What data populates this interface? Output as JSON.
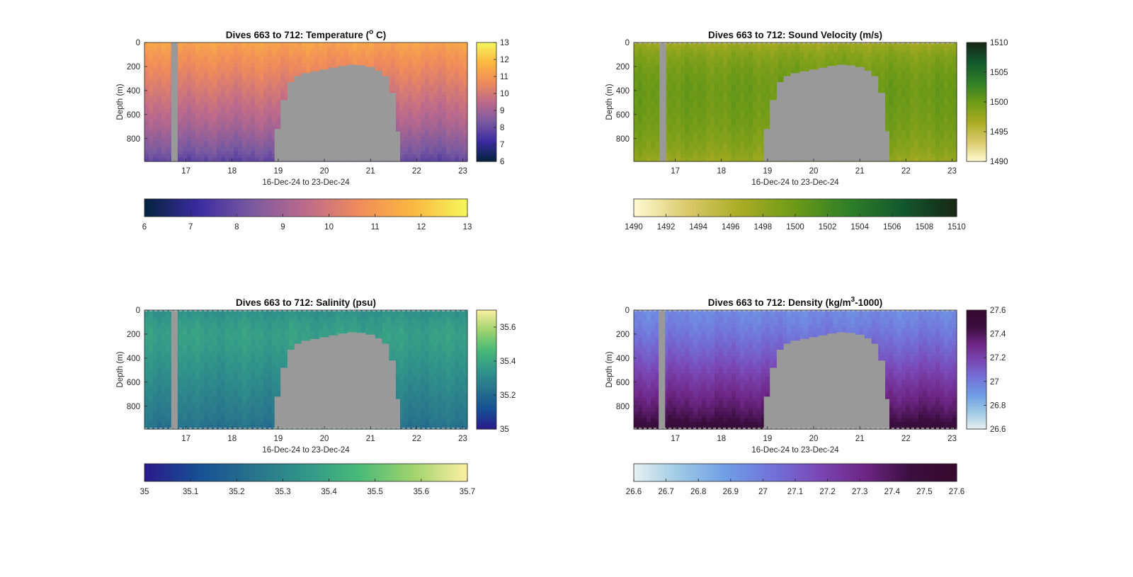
{
  "figure": {
    "background": "#ffffff",
    "hidden_color": "#999999"
  },
  "chart_data": [
    {
      "type": "heatmap",
      "title": "Dives 663 to 712: Temperature (° C)",
      "title_parts": [
        "Dives 663 to 712: Temperature (",
        "o",
        " C)"
      ],
      "xlabel": "16-Dec-24 to 23-Dec-24",
      "ylabel": "Depth (m)",
      "xlim": [
        16.1,
        23.1
      ],
      "ylim": [
        0,
        990
      ],
      "y_reversed": true,
      "x_ticks": [
        17,
        18,
        19,
        20,
        21,
        22,
        23
      ],
      "y_ticks": [
        0,
        200,
        400,
        600,
        800
      ],
      "colormap": "thermal",
      "colormap_stops": [
        "#04233d",
        "#3a2ba0",
        "#7a5aa0",
        "#bd6a8b",
        "#f08c5a",
        "#fbb840",
        "#f5f75c"
      ],
      "clim": [
        6,
        13
      ],
      "side_colorbar_ticks": [
        6,
        7,
        8,
        9,
        10,
        11,
        12,
        13
      ],
      "bottom_colorbar_ticks": [
        6,
        7,
        8,
        9,
        10,
        11,
        12,
        13
      ],
      "profile": {
        "depth": [
          0,
          100,
          200,
          300,
          400,
          500,
          600,
          700,
          800,
          900,
          990
        ],
        "values": [
          11.3,
          10.9,
          10.6,
          10.3,
          10.0,
          9.7,
          9.4,
          9.1,
          8.7,
          8.3,
          7.8
        ]
      },
      "gaps": [
        {
          "x": [
            16.68,
            16.82
          ],
          "depth": [
            0,
            990
          ]
        }
      ],
      "seafloor": {
        "x": [
          18.92,
          19.05,
          19.2,
          19.35,
          19.5,
          19.7,
          19.9,
          20.1,
          20.3,
          20.5,
          20.7,
          20.9,
          21.1,
          21.25,
          21.4,
          21.55
        ],
        "depth": [
          720,
          480,
          330,
          280,
          255,
          240,
          225,
          210,
          195,
          185,
          190,
          205,
          235,
          280,
          420,
          740
        ]
      },
      "surface_dash": false,
      "bottom_dash": false
    },
    {
      "type": "heatmap",
      "title": "Dives 663 to 712: Sound Velocity (m/s)",
      "title_parts": [
        "Dives 663 to 712: Sound Velocity (m/s)",
        "",
        ""
      ],
      "xlabel": "16-Dec-24 to 23-Dec-24",
      "ylabel": "Depth (m)",
      "xlim": [
        16.1,
        23.1
      ],
      "ylim": [
        0,
        990
      ],
      "y_reversed": true,
      "x_ticks": [
        17,
        18,
        19,
        20,
        21,
        22,
        23
      ],
      "y_ticks": [
        0,
        200,
        400,
        600,
        800
      ],
      "colormap": "speed",
      "colormap_stops": [
        "#fffad2",
        "#dac96a",
        "#a8ab23",
        "#6c9a17",
        "#2e7f28",
        "#13582e",
        "#172714"
      ],
      "clim": [
        1490,
        1510
      ],
      "side_colorbar_ticks": [
        1490,
        1495,
        1500,
        1505,
        1510
      ],
      "bottom_colorbar_ticks": [
        1490,
        1492,
        1494,
        1496,
        1498,
        1500,
        1502,
        1504,
        1506,
        1508,
        1510
      ],
      "profile": {
        "depth": [
          0,
          100,
          200,
          300,
          400,
          500,
          600,
          700,
          800,
          900,
          990
        ],
        "values": [
          1497.0,
          1498.5,
          1499.3,
          1499.8,
          1500.0,
          1499.9,
          1499.7,
          1499.4,
          1498.9,
          1498.3,
          1497.4
        ]
      },
      "gaps": [
        {
          "x": [
            16.66,
            16.8
          ],
          "depth": [
            0,
            990
          ]
        }
      ],
      "seafloor": {
        "x": [
          18.92,
          19.05,
          19.2,
          19.35,
          19.5,
          19.7,
          19.9,
          20.1,
          20.3,
          20.5,
          20.7,
          20.9,
          21.1,
          21.25,
          21.4,
          21.55
        ],
        "depth": [
          720,
          480,
          330,
          280,
          255,
          240,
          225,
          210,
          195,
          185,
          190,
          205,
          235,
          280,
          420,
          740
        ]
      },
      "surface_dash": true,
      "bottom_dash": false
    },
    {
      "type": "heatmap",
      "title": "Dives 663 to 712: Salinity (psu)",
      "title_parts": [
        "Dives 663 to 712: Salinity (psu)",
        "",
        ""
      ],
      "xlabel": "16-Dec-24 to 23-Dec-24",
      "ylabel": "Depth (m)",
      "xlim": [
        16.1,
        23.1
      ],
      "ylim": [
        0,
        990
      ],
      "y_reversed": true,
      "x_ticks": [
        17,
        18,
        19,
        20,
        21,
        22,
        23
      ],
      "y_ticks": [
        0,
        200,
        400,
        600,
        800
      ],
      "colormap": "haline",
      "colormap_stops": [
        "#2a1a8a",
        "#174f94",
        "#27738c",
        "#32968a",
        "#4aba78",
        "#a0d36d",
        "#fdf0a0"
      ],
      "clim": [
        35,
        35.7
      ],
      "side_colorbar_ticks": [
        35,
        35.2,
        35.4,
        35.6
      ],
      "bottom_colorbar_ticks": [
        35,
        35.1,
        35.2,
        35.3,
        35.4,
        35.5,
        35.6,
        35.7
      ],
      "profile": {
        "depth": [
          0,
          100,
          200,
          300,
          400,
          500,
          600,
          700,
          800,
          900,
          990
        ],
        "values": [
          35.33,
          35.36,
          35.38,
          35.37,
          35.35,
          35.33,
          35.31,
          35.29,
          35.27,
          35.25,
          35.22
        ]
      },
      "gaps": [
        {
          "x": [
            16.68,
            16.82
          ],
          "depth": [
            0,
            990
          ]
        }
      ],
      "seafloor": {
        "x": [
          18.92,
          19.05,
          19.2,
          19.35,
          19.5,
          19.7,
          19.9,
          20.1,
          20.3,
          20.5,
          20.7,
          20.9,
          21.1,
          21.25,
          21.4,
          21.55
        ],
        "depth": [
          720,
          480,
          330,
          280,
          255,
          240,
          225,
          210,
          195,
          185,
          190,
          205,
          235,
          280,
          420,
          740
        ]
      },
      "surface_dash": true,
      "bottom_dash": true
    },
    {
      "type": "heatmap",
      "title": "Dives 663 to 712: Density (kg/m³-1000)",
      "title_parts": [
        "Dives 663 to 712: Density (kg/m",
        "3",
        "-1000)"
      ],
      "xlabel": "16-Dec-24 to 23-Dec-24",
      "ylabel": "Depth (m)",
      "xlim": [
        16.1,
        23.1
      ],
      "ylim": [
        0,
        990
      ],
      "y_reversed": true,
      "x_ticks": [
        17,
        18,
        19,
        20,
        21,
        22,
        23
      ],
      "y_ticks": [
        0,
        200,
        400,
        600,
        800
      ],
      "colormap": "dense",
      "colormap_stops": [
        "#e6f1f1",
        "#9cc8e4",
        "#6f9ee6",
        "#7273d9",
        "#7a48b6",
        "#6e2685",
        "#3a0e3f",
        "#36092e"
      ],
      "clim": [
        26.6,
        27.6
      ],
      "side_colorbar_ticks": [
        26.6,
        26.8,
        27,
        27.2,
        27.4,
        27.6
      ],
      "bottom_colorbar_ticks": [
        26.6,
        26.7,
        26.8,
        26.9,
        27,
        27.1,
        27.2,
        27.3,
        27.4,
        27.5,
        27.6
      ],
      "profile": {
        "depth": [
          0,
          100,
          200,
          300,
          400,
          500,
          600,
          700,
          800,
          900,
          990
        ],
        "values": [
          26.95,
          26.98,
          27.02,
          27.07,
          27.12,
          27.18,
          27.24,
          27.3,
          27.36,
          27.43,
          27.52
        ]
      },
      "gaps": [
        {
          "x": [
            16.64,
            16.78
          ],
          "depth": [
            0,
            990
          ]
        }
      ],
      "seafloor": {
        "x": [
          18.92,
          19.05,
          19.2,
          19.35,
          19.5,
          19.7,
          19.9,
          20.1,
          20.3,
          20.5,
          20.7,
          20.9,
          21.1,
          21.25,
          21.4,
          21.55
        ],
        "depth": [
          720,
          480,
          330,
          280,
          255,
          240,
          225,
          210,
          195,
          185,
          190,
          205,
          235,
          280,
          420,
          740
        ]
      },
      "surface_dash": true,
      "bottom_dash": true
    }
  ]
}
